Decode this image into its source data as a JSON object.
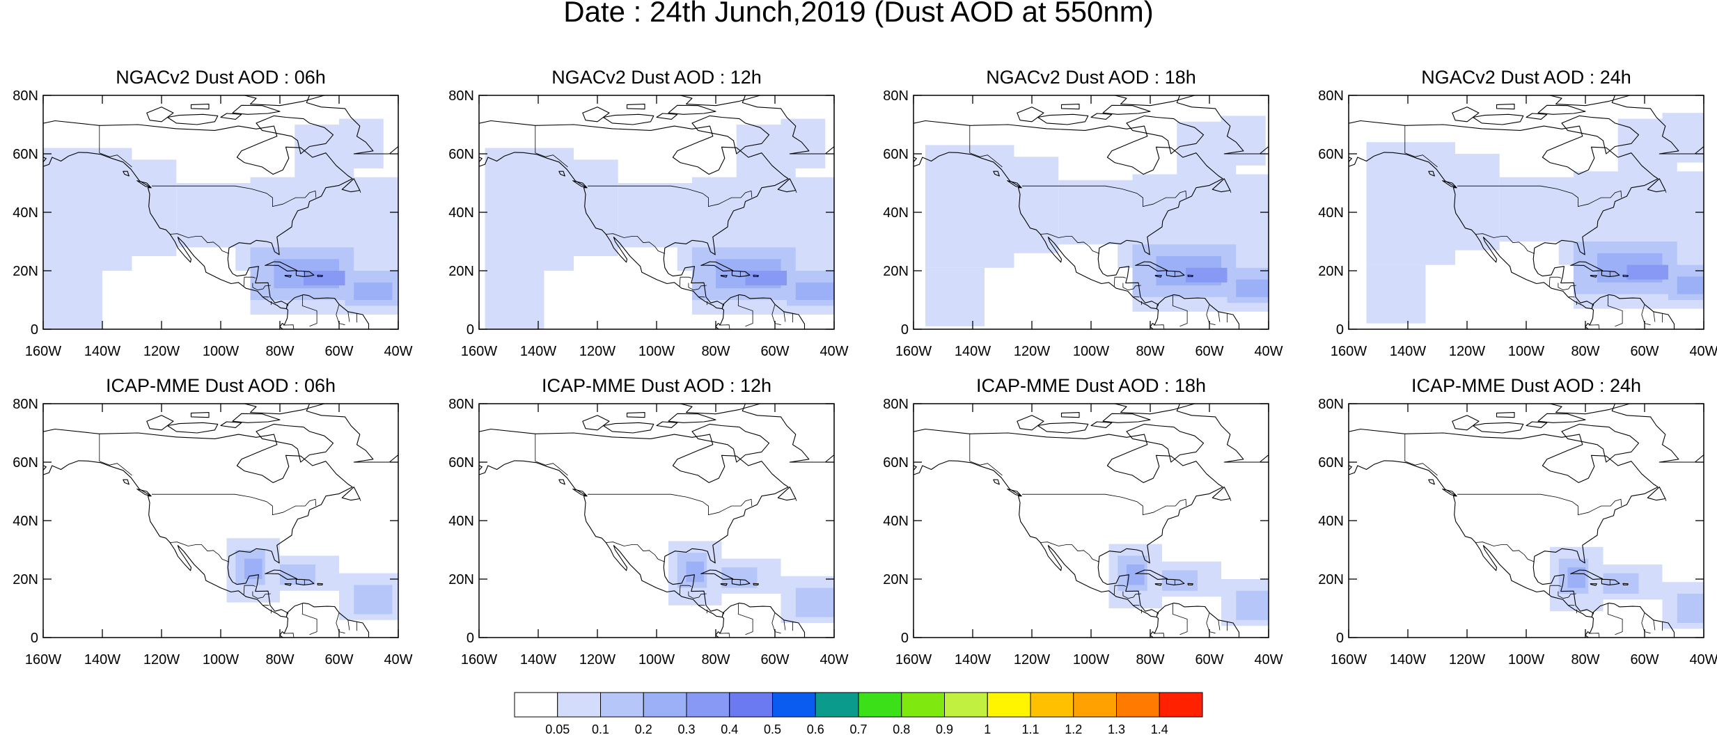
{
  "figure": {
    "title": "Date : 24th Junch,2019 (Dust AOD at 550nm)"
  },
  "map_axes": {
    "lat_range": [
      0,
      80
    ],
    "lon_range": [
      -160,
      -40
    ],
    "lat_ticks": [
      0,
      20,
      40,
      60,
      80
    ],
    "lat_tick_labels": [
      "0",
      "20N",
      "40N",
      "60N",
      "80N"
    ],
    "lon_ticks": [
      -160,
      -140,
      -120,
      -100,
      -80,
      -60,
      -40
    ],
    "lon_tick_labels": [
      "160W",
      "140W",
      "120W",
      "100W",
      "80W",
      "60W",
      "40W"
    ]
  },
  "panels": [
    {
      "title": "NGACv2 Dust AOD : 06h",
      "model": "NGACv2",
      "hour": "06h"
    },
    {
      "title": "NGACv2 Dust AOD : 12h",
      "model": "NGACv2",
      "hour": "12h"
    },
    {
      "title": "NGACv2 Dust AOD : 18h",
      "model": "NGACv2",
      "hour": "18h"
    },
    {
      "title": "NGACv2 Dust AOD : 24h",
      "model": "NGACv2",
      "hour": "24h"
    },
    {
      "title": "ICAP-MME Dust AOD : 06h",
      "model": "ICAP-MME",
      "hour": "06h"
    },
    {
      "title": "ICAP-MME Dust AOD : 12h",
      "model": "ICAP-MME",
      "hour": "12h"
    },
    {
      "title": "ICAP-MME Dust AOD : 18h",
      "model": "ICAP-MME",
      "hour": "18h"
    },
    {
      "title": "ICAP-MME Dust AOD : 24h",
      "model": "ICAP-MME",
      "hour": "24h"
    }
  ],
  "colorbar": {
    "labels": [
      "0.05",
      "0.1",
      "0.2",
      "0.3",
      "0.4",
      "0.5",
      "0.6",
      "0.7",
      "0.8",
      "0.9",
      "1",
      "1.1",
      "1.2",
      "1.3",
      "1.4"
    ],
    "colors": [
      "#ffffff",
      "#d3ddfb",
      "#b6c6f8",
      "#9bb0f6",
      "#8799f4",
      "#6b7af1",
      "#0a5cf0",
      "#0b9b8c",
      "#3ce019",
      "#7fe80f",
      "#c2f040",
      "#fff500",
      "#ffc000",
      "#ffa100",
      "#ff7a00",
      "#ff2100"
    ]
  },
  "colors": {
    "land_outline": "#000000",
    "dust_levels": [
      "#d3ddfb",
      "#b6c6f8",
      "#9bb0f6",
      "#8799f4"
    ]
  }
}
